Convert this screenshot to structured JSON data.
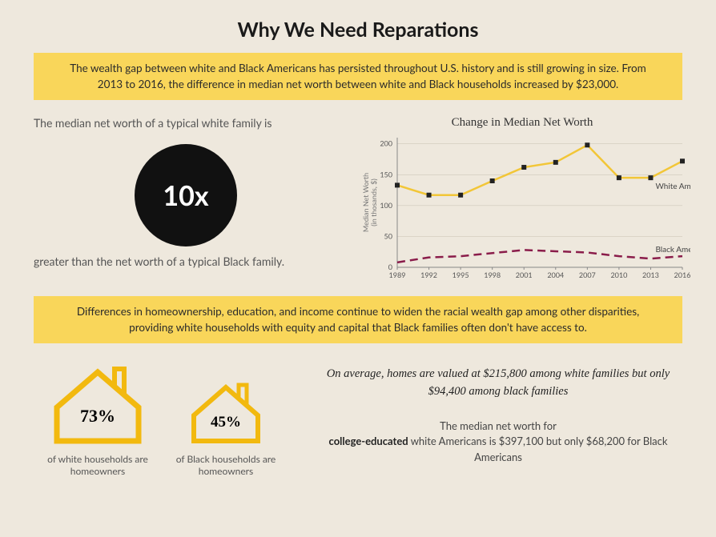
{
  "title": "Why We Need Reparations",
  "intro_box": "The wealth gap between white and Black Americans has persisted throughout U.S. history and is still growing in size. From 2013 to 2016, the difference in median net worth between white and Black households increased by $23,000.",
  "tenx": {
    "lead": "The median net worth of a typical white family is",
    "circle_value": "10x",
    "circle_bg": "#111111",
    "circle_fg": "#ffffff",
    "sub": "greater than the net worth of a typical Black family."
  },
  "chart": {
    "type": "line",
    "title": "Change in Median Net Worth",
    "yaxis_label_1": "Median Net Worth",
    "yaxis_label_2": "(in thosands, $)",
    "years": [
      "1989",
      "1992",
      "1995",
      "1998",
      "2001",
      "2004",
      "2007",
      "2010",
      "2013",
      "2016"
    ],
    "ylim": [
      0,
      210
    ],
    "yticks": [
      0,
      50,
      100,
      150,
      200
    ],
    "series": [
      {
        "name": "White Americans",
        "color": "#f2c637",
        "marker": "square",
        "marker_color": "#222222",
        "stroke_width": 2.5,
        "values": [
          133,
          117,
          117,
          140,
          162,
          170,
          198,
          145,
          145,
          172
        ]
      },
      {
        "name": "Black Americans",
        "color": "#8a1c4a",
        "dash": "10,6",
        "stroke_width": 2.5,
        "values": [
          8,
          16,
          18,
          23,
          28,
          26,
          24,
          18,
          14,
          18
        ]
      }
    ],
    "grid_color": "#cfc8ba",
    "axis_color": "#888888",
    "label_fontsize": 9,
    "title_fontsize": 15
  },
  "mid_box": "Differences in homeownership, education, and income continue to widen the racial wealth gap among other disparities, providing white households with equity and capital that Black families often don't have access to.",
  "houses": {
    "house_color": "#f2b90f",
    "white": {
      "pct": "73%",
      "caption_1": "of white households are",
      "caption_2": "homeowners"
    },
    "black": {
      "pct": "45%",
      "caption_1": "of Black households are",
      "caption_2": "homeowners"
    }
  },
  "home_value_text": "On average, homes are valued at $215,800 among white families but only $94,400 among black families",
  "education_text_pre": "The median net worth for",
  "education_text_bold": "college-educated",
  "education_text_post": " white Americans is $397,100 but only $68,200 for Black Americans",
  "colors": {
    "background": "#eee8dd",
    "yellow": "#f9d65a"
  }
}
